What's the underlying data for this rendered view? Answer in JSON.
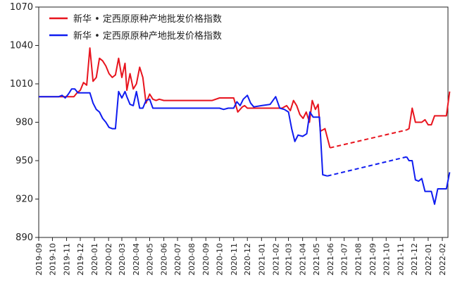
{
  "chart_data": {
    "type": "line",
    "title": "",
    "xlabel": "",
    "ylabel": "",
    "ylim": [
      890,
      1070
    ],
    "yticks": [
      890,
      920,
      950,
      980,
      1010,
      1040,
      1070
    ],
    "x_start": "2019-09",
    "x_end": "2022-02",
    "xticks": [
      "2019-09",
      "2019-10",
      "2019-11",
      "2019-12",
      "2020-01",
      "2020-02",
      "2020-03",
      "2020-04",
      "2020-05",
      "2020-06",
      "2020-07",
      "2020-08",
      "2020-09",
      "2020-10",
      "2020-11",
      "2020-12",
      "2021-01",
      "2021-02",
      "2021-03",
      "2021-04",
      "2021-05",
      "2021-06",
      "2021-07",
      "2021-08",
      "2021-09",
      "2021-10",
      "2021-11",
      "2021-12",
      "2022-01",
      "2022-02"
    ],
    "legend_position": "top-left",
    "grid": false,
    "series": [
      {
        "name": "新华 • 定西原原种产地批发价格指数",
        "color": "#e8141e",
        "segments": [
          {
            "style": "solid",
            "points": [
              [
                "2019-09-01",
                1000
              ],
              [
                "2019-09-15",
                1000
              ],
              [
                "2019-10-01",
                1000
              ],
              [
                "2019-10-15",
                1000
              ],
              [
                "2019-10-20",
                1000
              ],
              [
                "2019-10-27",
                1000
              ],
              [
                "2019-11-01",
                1000
              ],
              [
                "2019-11-10",
                1000
              ],
              [
                "2019-11-17",
                1000
              ],
              [
                "2019-11-24",
                1003
              ],
              [
                "2019-12-01",
                1005
              ],
              [
                "2019-12-08",
                1011
              ],
              [
                "2019-12-15",
                1009
              ],
              [
                "2019-12-22",
                1038
              ],
              [
                "2019-12-29",
                1012
              ],
              [
                "2020-01-05",
                1015
              ],
              [
                "2020-01-12",
                1030
              ],
              [
                "2020-01-19",
                1028
              ],
              [
                "2020-01-26",
                1024
              ],
              [
                "2020-02-02",
                1018
              ],
              [
                "2020-02-09",
                1015
              ],
              [
                "2020-02-16",
                1017
              ],
              [
                "2020-02-23",
                1030
              ],
              [
                "2020-03-01",
                1015
              ],
              [
                "2020-03-08",
                1026
              ],
              [
                "2020-03-12",
                1005
              ],
              [
                "2020-03-19",
                1018
              ],
              [
                "2020-03-26",
                1006
              ],
              [
                "2020-04-02",
                1010
              ],
              [
                "2020-04-09",
                1023
              ],
              [
                "2020-04-16",
                1015
              ],
              [
                "2020-04-23",
                995
              ],
              [
                "2020-05-01",
                1002
              ],
              [
                "2020-05-08",
                998
              ],
              [
                "2020-05-15",
                997
              ],
              [
                "2020-05-22",
                998
              ],
              [
                "2020-06-01",
                997
              ],
              [
                "2020-07-01",
                997
              ],
              [
                "2020-08-01",
                997
              ],
              [
                "2020-09-01",
                997
              ],
              [
                "2020-09-15",
                997
              ],
              [
                "2020-10-01",
                999
              ],
              [
                "2020-10-15",
                999
              ],
              [
                "2020-11-01",
                999
              ],
              [
                "2020-11-10",
                988
              ],
              [
                "2020-11-20",
                992
              ],
              [
                "2020-11-25",
                993
              ],
              [
                "2020-12-01",
                991
              ],
              [
                "2021-01-01",
                991
              ],
              [
                "2021-01-20",
                991
              ],
              [
                "2021-02-01",
                991
              ],
              [
                "2021-02-15",
                991
              ],
              [
                "2021-02-25",
                993
              ],
              [
                "2021-03-05",
                989
              ],
              [
                "2021-03-12",
                997
              ],
              [
                "2021-03-19",
                993
              ],
              [
                "2021-03-26",
                986
              ],
              [
                "2021-04-02",
                983
              ],
              [
                "2021-04-09",
                988
              ],
              [
                "2021-04-16",
                980
              ],
              [
                "2021-04-22",
                997
              ],
              [
                "2021-04-29",
                990
              ],
              [
                "2021-05-05",
                994
              ],
              [
                "2021-05-10",
                973
              ],
              [
                "2021-05-20",
                975
              ],
              [
                "2021-05-31",
                960
              ]
            ]
          },
          {
            "style": "dashed",
            "points": [
              [
                "2021-05-31",
                960
              ],
              [
                "2021-11-15",
                974
              ]
            ]
          },
          {
            "style": "solid",
            "points": [
              [
                "2021-11-15",
                974
              ],
              [
                "2021-11-20",
                975
              ],
              [
                "2021-11-27",
                991
              ],
              [
                "2021-12-04",
                980
              ],
              [
                "2021-12-11",
                980
              ],
              [
                "2021-12-18",
                980
              ],
              [
                "2021-12-25",
                982
              ],
              [
                "2022-01-01",
                978
              ],
              [
                "2022-01-08",
                978
              ],
              [
                "2022-01-15",
                985
              ],
              [
                "2022-01-22",
                985
              ],
              [
                "2022-02-01",
                985
              ],
              [
                "2022-02-10",
                985
              ],
              [
                "2022-02-17",
                1004
              ]
            ]
          }
        ]
      },
      {
        "name": "新华 • 定西原原种产地批发价格指数",
        "color": "#0f1cf0",
        "segments": [
          {
            "style": "solid",
            "points": [
              [
                "2019-09-01",
                1000
              ],
              [
                "2019-09-15",
                1000
              ],
              [
                "2019-10-01",
                1000
              ],
              [
                "2019-10-15",
                1000
              ],
              [
                "2019-10-22",
                1001
              ],
              [
                "2019-10-29",
                999
              ],
              [
                "2019-11-05",
                1002
              ],
              [
                "2019-11-12",
                1006
              ],
              [
                "2019-11-19",
                1006
              ],
              [
                "2019-11-26",
                1003
              ],
              [
                "2019-12-01",
                1003
              ],
              [
                "2019-12-15",
                1003
              ],
              [
                "2019-12-22",
                1003
              ],
              [
                "2019-12-29",
                995
              ],
              [
                "2020-01-05",
                990
              ],
              [
                "2020-01-12",
                988
              ],
              [
                "2020-01-19",
                983
              ],
              [
                "2020-01-26",
                980
              ],
              [
                "2020-02-02",
                976
              ],
              [
                "2020-02-09",
                975
              ],
              [
                "2020-02-16",
                975
              ],
              [
                "2020-02-23",
                1004
              ],
              [
                "2020-03-01",
                999
              ],
              [
                "2020-03-08",
                1004
              ],
              [
                "2020-03-12",
                1000
              ],
              [
                "2020-03-19",
                994
              ],
              [
                "2020-03-26",
                993
              ],
              [
                "2020-04-02",
                1004
              ],
              [
                "2020-04-09",
                991
              ],
              [
                "2020-04-16",
                991
              ],
              [
                "2020-04-23",
                997
              ],
              [
                "2020-05-01",
                998
              ],
              [
                "2020-05-08",
                991
              ],
              [
                "2020-05-15",
                991
              ],
              [
                "2020-06-01",
                991
              ],
              [
                "2020-07-01",
                991
              ],
              [
                "2020-08-01",
                991
              ],
              [
                "2020-09-01",
                991
              ],
              [
                "2020-09-15",
                991
              ],
              [
                "2020-10-01",
                991
              ],
              [
                "2020-10-10",
                990
              ],
              [
                "2020-10-20",
                991
              ],
              [
                "2020-11-01",
                991
              ],
              [
                "2020-11-08",
                996
              ],
              [
                "2020-11-15",
                993
              ],
              [
                "2020-11-22",
                998
              ],
              [
                "2020-12-01",
                1001
              ],
              [
                "2020-12-08",
                995
              ],
              [
                "2020-12-15",
                992
              ],
              [
                "2021-01-01",
                993
              ],
              [
                "2021-01-20",
                994
              ],
              [
                "2021-02-01",
                1000
              ],
              [
                "2021-02-10",
                991
              ],
              [
                "2021-02-20",
                990
              ],
              [
                "2021-03-01",
                988
              ],
              [
                "2021-03-08",
                975
              ],
              [
                "2021-03-15",
                965
              ],
              [
                "2021-03-22",
                970
              ],
              [
                "2021-04-01",
                969
              ],
              [
                "2021-04-10",
                971
              ],
              [
                "2021-04-17",
                988
              ],
              [
                "2021-04-24",
                984
              ],
              [
                "2021-05-01",
                984
              ],
              [
                "2021-05-08",
                984
              ],
              [
                "2021-05-15",
                939
              ],
              [
                "2021-05-25",
                938
              ]
            ]
          },
          {
            "style": "dashed",
            "points": [
              [
                "2021-05-25",
                938
              ],
              [
                "2021-11-15",
                953
              ]
            ]
          },
          {
            "style": "solid",
            "points": [
              [
                "2021-11-15",
                953
              ],
              [
                "2021-11-20",
                950
              ],
              [
                "2021-11-27",
                950
              ],
              [
                "2021-12-04",
                935
              ],
              [
                "2021-12-11",
                934
              ],
              [
                "2021-12-18",
                936
              ],
              [
                "2021-12-25",
                926
              ],
              [
                "2022-01-01",
                926
              ],
              [
                "2022-01-08",
                926
              ],
              [
                "2022-01-15",
                916
              ],
              [
                "2022-01-22",
                928
              ],
              [
                "2022-02-01",
                928
              ],
              [
                "2022-02-10",
                928
              ],
              [
                "2022-02-17",
                941
              ]
            ]
          }
        ]
      }
    ]
  }
}
